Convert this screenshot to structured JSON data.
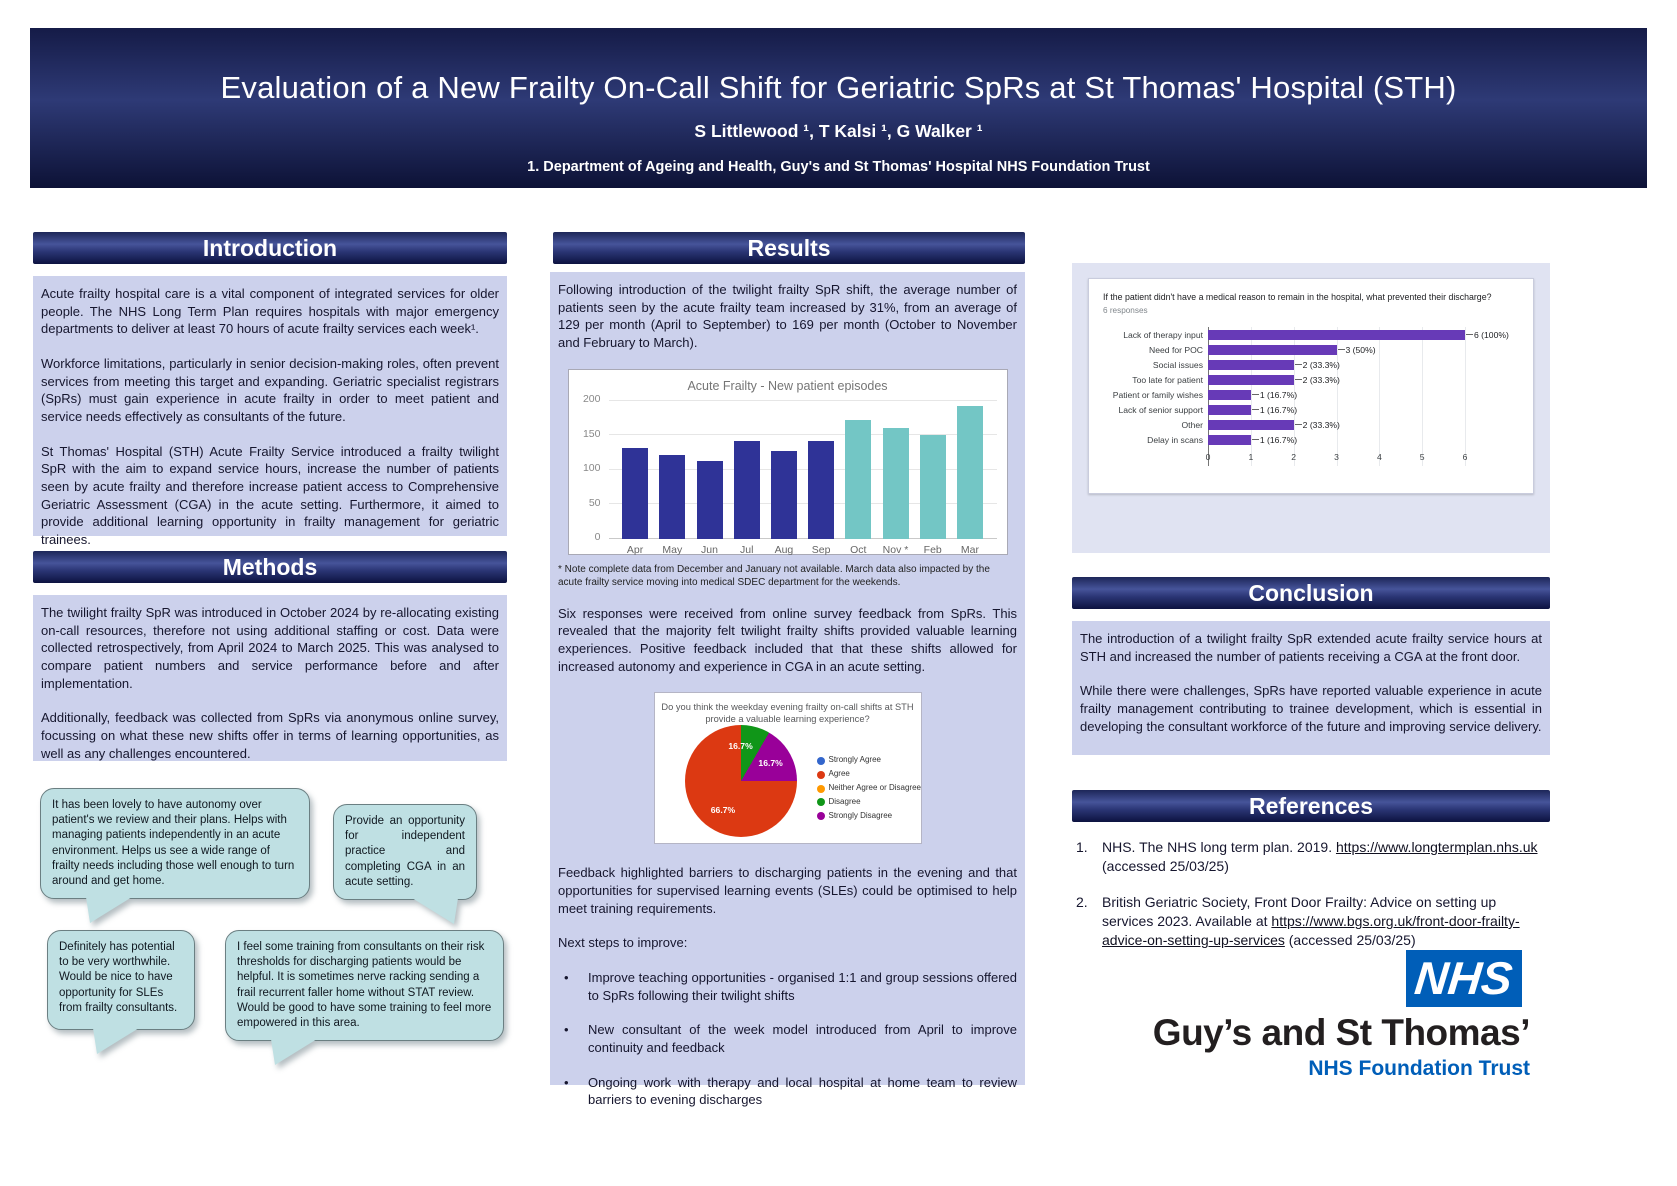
{
  "header": {
    "title": "Evaluation of a New Frailty On-Call Shift for Geriatric SpRs at St Thomas' Hospital (STH)",
    "authors": "S Littlewood ¹, T Kalsi ¹, G Walker ¹",
    "affiliation": "1. Department of Ageing and Health, Guy's and St Thomas' Hospital NHS Foundation Trust"
  },
  "sections": {
    "introduction": {
      "title": "Introduction",
      "paragraphs": [
        "Acute frailty hospital care is a vital component of integrated services for older people. The NHS Long Term Plan requires hospitals with major emergency departments to deliver at least 70 hours of acute frailty services each week¹.",
        "Workforce limitations, particularly in senior decision-making roles, often prevent services from meeting this target and expanding. Geriatric specialist registrars (SpRs) must gain experience in acute frailty in order to meet patient and service needs effectively as consultants of the future.",
        "St Thomas' Hospital (STH) Acute Frailty Service introduced a frailty twilight SpR with the aim to expand service hours, increase the number of patients seen by acute frailty and therefore increase patient access to Comprehensive Geriatric Assessment (CGA) in the acute setting. Furthermore, it aimed to provide additional learning opportunity in frailty management for geriatric trainees."
      ]
    },
    "methods": {
      "title": "Methods",
      "paragraphs": [
        "The twilight frailty SpR was introduced in October 2024 by re-allocating existing on-call resources, therefore not using additional staffing or cost. Data were collected retrospectively, from April 2024 to March 2025. This was analysed to compare patient numbers and service performance before and after implementation.",
        "Additionally, feedback was collected from SpRs via anonymous online survey, focussing on what these new shifts offer in terms of learning opportunities, as well as any challenges encountered."
      ]
    },
    "results": {
      "title": "Results",
      "p1": "Following introduction of the twilight frailty SpR shift, the average number of patients seen by the acute frailty team increased by 31%, from an average of 129 per month (April to September) to 169 per month (October to November and February to March).",
      "chart_note": "* Note complete data from December and January not available. March data also impacted by the acute frailty service moving into medical SDEC department for the weekends.",
      "p2": "Six responses were received from online survey feedback from SpRs. This revealed that the majority felt twilight frailty shifts provided valuable learning experiences. Positive feedback included that that these shifts allowed for increased autonomy and experience in CGA in an acute setting.",
      "p3": "Feedback highlighted barriers to discharging patients in the evening and that opportunities for supervised learning events (SLEs) could be optimised to help meet training requirements.",
      "next_steps_label": "Next steps to improve:",
      "bullets": [
        "Improve teaching opportunities - organised 1:1 and group sessions offered to SpRs following their twilight shifts",
        "New consultant of the week model introduced from April to improve continuity and feedback",
        "Ongoing work with therapy and local hospital at home team to review barriers to evening discharges"
      ]
    },
    "conclusion": {
      "title": "Conclusion",
      "paragraphs": [
        "The introduction of a twilight frailty SpR extended acute frailty service hours at STH and increased the number of patients receiving a CGA at the front door.",
        "While there were challenges, SpRs have reported valuable experience in acute frailty management contributing to trainee development, which is essential in developing the consultant workforce of the future and improving service delivery."
      ]
    },
    "references": {
      "title": "References",
      "items": [
        {
          "num": "1.",
          "pre": "NHS. The NHS long term plan. 2019. ",
          "link": "https://www.longtermplan.nhs.uk",
          "post": " (accessed 25/03/25)"
        },
        {
          "num": "2.",
          "pre": "British Geriatric Society, Front Door Frailty: Advice on setting up services 2023. Available at ",
          "link": "https://www.bgs.org.uk/front-door-frailty-advice-on-setting-up-services",
          "post": " (accessed 25/03/25)"
        }
      ]
    }
  },
  "quotes": [
    "It has been lovely to have autonomy over patient's we review and their plans. Helps with managing patients independently in an acute environment. Helps us see a wide range of frailty needs including those well enough to turn around and get home.",
    "Provide an opportunity for independent practice and completing CGA in an acute setting.",
    "Definitely has potential to be very worthwhile. Would be nice to have opportunity for SLEs from frailty consultants.",
    "I feel some training from consultants on their risk thresholds for discharging patients would be helpful. It is sometimes nerve racking sending a frail recurrent faller home without STAT review. Would be good to have some training to feel more empowered in this area."
  ],
  "chart_data": [
    {
      "type": "bar",
      "title": "Acute Frailty - New patient episodes",
      "categories": [
        "Apr",
        "May",
        "Jun",
        "Jul",
        "Aug",
        "Sep",
        "Oct",
        "Nov *",
        "Feb",
        "Mar"
      ],
      "values": [
        131,
        121,
        112,
        142,
        127,
        141,
        172,
        160,
        150,
        192
      ],
      "bar_colors": [
        "#2f3397",
        "#2f3397",
        "#2f3397",
        "#2f3397",
        "#2f3397",
        "#2f3397",
        "#73c6c5",
        "#73c6c5",
        "#73c6c5",
        "#73c6c5"
      ],
      "ylim": [
        0,
        200
      ],
      "y_ticks": [
        0,
        50,
        100,
        150,
        200
      ],
      "grid": true,
      "legend": "none"
    },
    {
      "type": "pie",
      "title": "Do you think the weekday evening frailty on-call shifts at STH provide a valuable learning experience?",
      "start_angle_deg": -30,
      "slices": [
        {
          "label": "Disagree",
          "pct": 16.7,
          "color": "#109618"
        },
        {
          "label": "Strongly Disagree",
          "pct": 16.7,
          "color": "#990099"
        },
        {
          "label": "Agree",
          "pct": 66.7,
          "color": "#dc3912"
        }
      ],
      "legend": [
        {
          "label": "Strongly Agree",
          "color": "#3366cc"
        },
        {
          "label": "Agree",
          "color": "#dc3912"
        },
        {
          "label": "Neither Agree or Disagree",
          "color": "#ff9900"
        },
        {
          "label": "Disagree",
          "color": "#109618"
        },
        {
          "label": "Strongly Disagree",
          "color": "#990099"
        }
      ],
      "legend_position": "right"
    },
    {
      "type": "bar",
      "orientation": "horizontal",
      "title": "If the patient didn't have a medical reason to remain in the hospital, what prevented their discharge?",
      "subtitle": "6 responses",
      "categories": [
        "Lack of therapy input",
        "Need for POC",
        "Social issues",
        "Too late for patient",
        "Patient or family wishes",
        "Lack of senior support",
        "Other",
        "Delay in scans"
      ],
      "values": [
        6,
        3,
        2,
        2,
        1,
        1,
        2,
        1
      ],
      "value_labels": [
        "6 (100%)",
        "3 (50%)",
        "2 (33.3%)",
        "2 (33.3%)",
        "1 (16.7%)",
        "1 (16.7%)",
        "2 (33.3%)",
        "1 (16.7%)"
      ],
      "xlim": [
        0,
        6
      ],
      "x_ticks": [
        0,
        1,
        2,
        3,
        4,
        5,
        6
      ],
      "bar_color": "#673ab7",
      "grid": true
    }
  ],
  "logo": {
    "nhs": "NHS",
    "org": "Guy’s and St Thomas’",
    "trust": "NHS Foundation Trust",
    "nhs_blue": "#005EB8"
  },
  "colors": {
    "banner": "#1d2658",
    "block_bg": "#ccd1ec",
    "panel_bg": "#e0e3f2",
    "bubble_bg": "#bfe0e3",
    "bar_navy": "#2f3397",
    "bar_teal": "#73c6c5",
    "forms_purple": "#673ab7"
  }
}
